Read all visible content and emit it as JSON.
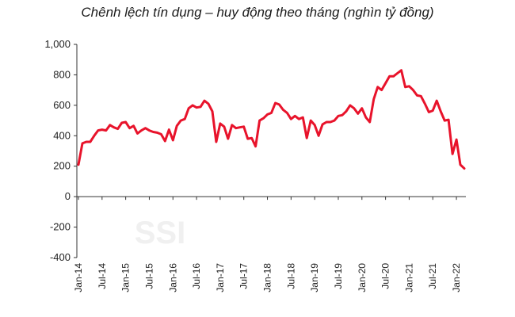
{
  "chart_data": {
    "type": "line",
    "title": "Chênh lệch tín dụng – huy động theo tháng (nghìn tỷ đồng)",
    "xlabel": "",
    "ylabel": "",
    "ylim": [
      -400,
      1000
    ],
    "yticks": [
      "1,000",
      "800",
      "600",
      "400",
      "200",
      "0",
      "-200",
      "-400"
    ],
    "ytick_values": [
      1000,
      800,
      600,
      400,
      200,
      0,
      -200,
      -400
    ],
    "xtick_labels": [
      "Jan-14",
      "Jul-14",
      "Jan-15",
      "Jul-15",
      "Jan-16",
      "Jul-16",
      "Jan-17",
      "Jul-17",
      "Jan-18",
      "Jul-18",
      "Jan-19",
      "Jul-19",
      "Jan-20",
      "Jul-20",
      "Jan-21",
      "Jul-21",
      "Jan-22"
    ],
    "grid": false,
    "line_color": "#e8132b",
    "watermark": "SSI",
    "series": [
      {
        "values": [
          210,
          350,
          360,
          360,
          400,
          435,
          440,
          435,
          470,
          455,
          445,
          485,
          490,
          450,
          465,
          415,
          435,
          450,
          435,
          425,
          420,
          410,
          365,
          440,
          370,
          465,
          500,
          510,
          580,
          600,
          585,
          590,
          630,
          610,
          560,
          360,
          480,
          460,
          380,
          470,
          450,
          455,
          460,
          380,
          385,
          330,
          500,
          515,
          540,
          550,
          615,
          605,
          570,
          550,
          510,
          530,
          510,
          520,
          385,
          500,
          470,
          400,
          475,
          490,
          490,
          500,
          530,
          535,
          560,
          600,
          580,
          545,
          580,
          520,
          490,
          640,
          720,
          700,
          745,
          790,
          790,
          810,
          830,
          720,
          725,
          700,
          665,
          660,
          610,
          555,
          565,
          630,
          560,
          500,
          505,
          280,
          375,
          210,
          185
        ]
      }
    ]
  }
}
